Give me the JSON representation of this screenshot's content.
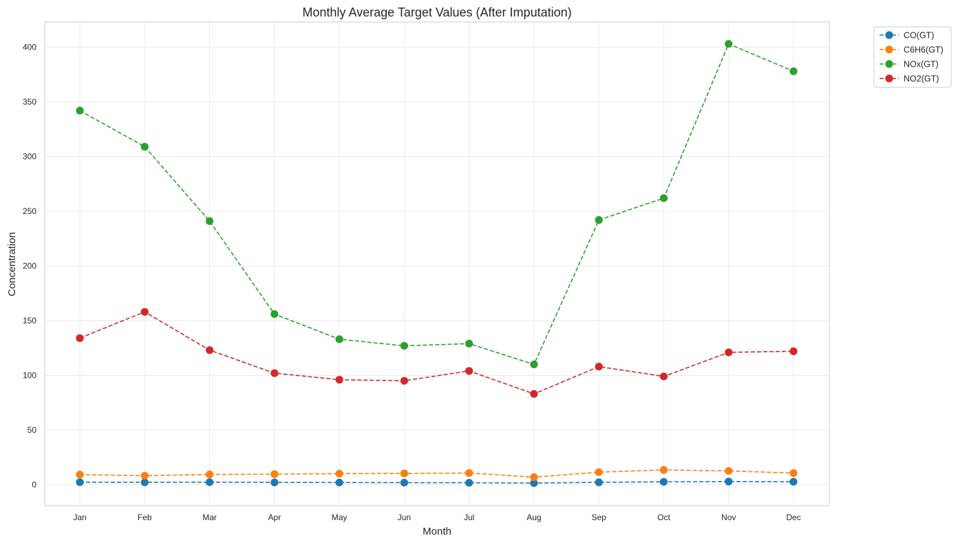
{
  "chart_data": {
    "type": "line",
    "title": "Monthly Average Target Values (After Imputation)",
    "xlabel": "Month",
    "ylabel": "Concentration",
    "categories": [
      "Jan",
      "Feb",
      "Mar",
      "Apr",
      "May",
      "Jun",
      "Jul",
      "Aug",
      "Sep",
      "Oct",
      "Nov",
      "Dec"
    ],
    "yticks": [
      0,
      50,
      100,
      150,
      200,
      250,
      300,
      350,
      400
    ],
    "ylim": [
      -19.2,
      423
    ],
    "grid": true,
    "legend_position": "outside-top-right",
    "series": [
      {
        "name": "CO(GT)",
        "color": "#1f77b4",
        "marker": "circle",
        "line_style": "dashed",
        "values": [
          2.3,
          2.2,
          2.3,
          2.1,
          2.0,
          1.9,
          1.8,
          1.5,
          2.2,
          2.6,
          2.9,
          2.7
        ]
      },
      {
        "name": "C6H6(GT)",
        "color": "#ff7f0e",
        "marker": "circle",
        "line_style": "dashed",
        "values": [
          9.3,
          8.2,
          9.4,
          9.6,
          10.1,
          10.3,
          10.7,
          6.9,
          11.5,
          13.5,
          12.6,
          10.6
        ]
      },
      {
        "name": "NOx(GT)",
        "color": "#2ca02c",
        "marker": "circle",
        "line_style": "dashed",
        "values": [
          342,
          309,
          241,
          156,
          133,
          127,
          129,
          110,
          242,
          262,
          403,
          378
        ]
      },
      {
        "name": "NO2(GT)",
        "color": "#d62728",
        "marker": "circle",
        "line_style": "dashed",
        "values": [
          134,
          158,
          123,
          102,
          96,
          95,
          104,
          83,
          108,
          99,
          121,
          122
        ]
      }
    ]
  }
}
